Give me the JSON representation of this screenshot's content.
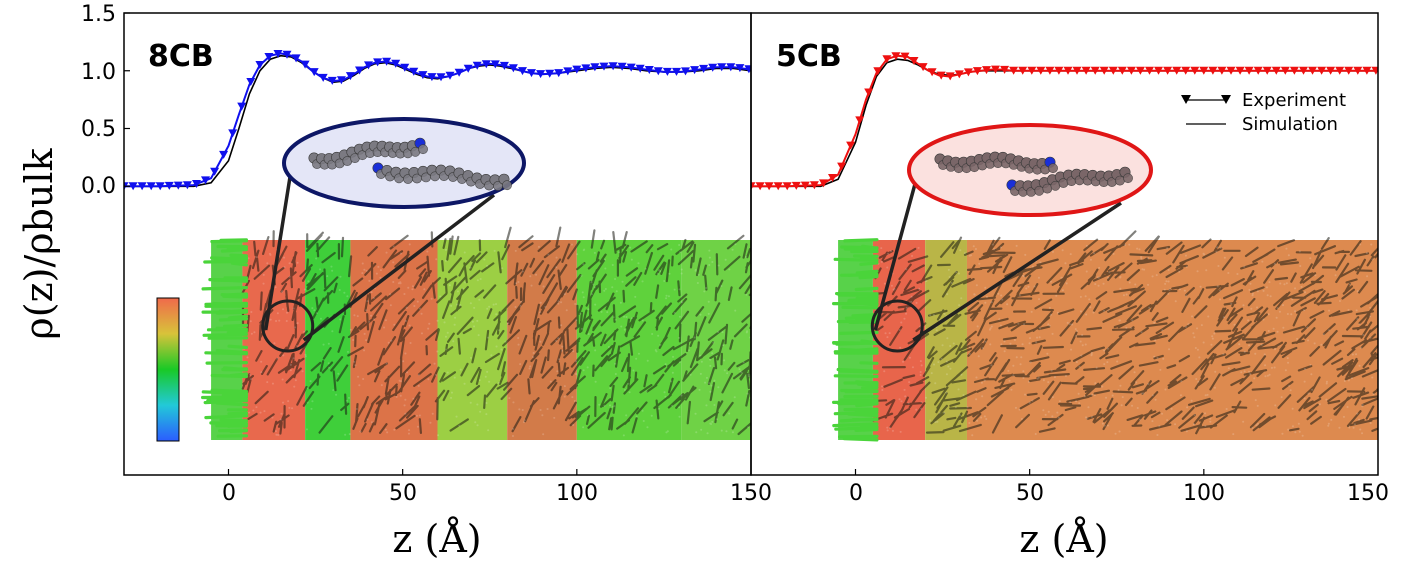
{
  "chart_data": [
    {
      "type": "line",
      "panel_label": "8CB",
      "xlabel": "z (Å)",
      "ylabel": "ρ(z)/ρbulk",
      "xlim": [
        -30,
        150
      ],
      "ylim": [
        -2.5,
        1.5
      ],
      "x_ticks": [
        "0",
        "50",
        "100",
        "150"
      ],
      "y_ticks": [
        "0.0",
        "0.5",
        "1.0",
        "1.5"
      ],
      "grid": false,
      "colors": {
        "experiment": "#1010ee",
        "simulation": "#000000",
        "ellipse_fill": "#e4e6f7",
        "ellipse_edge": "#0d1766",
        "molecule_atom": "#7b7a82",
        "molecule_end": "#1a2fd8"
      },
      "colorbar": {
        "stops": [
          "#2b5cff",
          "#22c9d8",
          "#19c926",
          "#d8c33a",
          "#f06a4b"
        ]
      },
      "series": [
        {
          "name": "Experiment",
          "marker": "triangle-down",
          "x": [
            -30,
            -20,
            -10,
            -5,
            0,
            3,
            6,
            9,
            12,
            15,
            18,
            21,
            24,
            27,
            30,
            33,
            36,
            39,
            42,
            45,
            48,
            51,
            54,
            57,
            60,
            63,
            66,
            69,
            72,
            75,
            78,
            81,
            84,
            87,
            90,
            95,
            100,
            105,
            110,
            115,
            120,
            125,
            130,
            135,
            140,
            145,
            150
          ],
          "y": [
            0,
            0,
            0.01,
            0.07,
            0.35,
            0.62,
            0.88,
            1.05,
            1.13,
            1.15,
            1.13,
            1.08,
            1.0,
            0.94,
            0.91,
            0.92,
            0.97,
            1.03,
            1.07,
            1.08,
            1.06,
            1.02,
            0.98,
            0.95,
            0.94,
            0.95,
            0.98,
            1.02,
            1.05,
            1.06,
            1.05,
            1.03,
            1.0,
            0.98,
            0.97,
            0.98,
            1.01,
            1.03,
            1.04,
            1.03,
            1.01,
            0.99,
            0.99,
            1.01,
            1.03,
            1.03,
            1.01
          ]
        },
        {
          "name": "Simulation",
          "x": [
            -30,
            -20,
            -10,
            -5,
            0,
            3,
            6,
            9,
            12,
            15,
            18,
            21,
            24,
            27,
            30,
            33,
            36,
            39,
            42,
            45,
            48,
            51,
            54,
            57,
            60,
            63,
            66,
            69,
            72,
            75,
            78,
            81,
            84,
            87,
            90,
            95,
            100,
            105,
            110,
            115,
            120,
            125,
            130,
            135,
            140,
            145,
            150
          ],
          "y": [
            0,
            0,
            0,
            0.03,
            0.22,
            0.5,
            0.8,
            1.0,
            1.1,
            1.13,
            1.12,
            1.07,
            1.0,
            0.94,
            0.9,
            0.91,
            0.96,
            1.02,
            1.06,
            1.07,
            1.05,
            1.01,
            0.97,
            0.94,
            0.93,
            0.95,
            0.98,
            1.02,
            1.04,
            1.05,
            1.04,
            1.02,
            1.0,
            0.98,
            0.97,
            0.98,
            1.0,
            1.02,
            1.03,
            1.02,
            1.0,
            0.99,
            0.99,
            1.0,
            1.02,
            1.02,
            1.0
          ]
        }
      ],
      "slab": {
        "z_start": -5,
        "z_end": 150,
        "bands": [
          {
            "from": -5,
            "to": 4,
            "color": "#58d24a"
          },
          {
            "from": 4,
            "to": 22,
            "color": "#e8694d"
          },
          {
            "from": 22,
            "to": 35,
            "color": "#3fcf3a"
          },
          {
            "from": 35,
            "to": 60,
            "color": "#dc7348"
          },
          {
            "from": 60,
            "to": 80,
            "color": "#9ccf44"
          },
          {
            "from": 80,
            "to": 100,
            "color": "#d27b49"
          },
          {
            "from": 100,
            "to": 130,
            "color": "#5fd23c"
          },
          {
            "from": 130,
            "to": 150,
            "color": "#6fd246"
          }
        ]
      },
      "zoom_circle_z": 17
    },
    {
      "type": "line",
      "panel_label": "5CB",
      "xlabel": "z (Å)",
      "xlim": [
        -30,
        150
      ],
      "ylim": [
        -2.5,
        1.5
      ],
      "x_ticks": [
        "150",
        "0",
        "50",
        "100",
        "150"
      ],
      "grid": false,
      "legend": {
        "placement": "right",
        "entries": [
          "Experiment",
          "Simulation"
        ]
      },
      "colors": {
        "experiment": "#ee1010",
        "simulation": "#000000",
        "ellipse_fill": "#fbe1df",
        "ellipse_edge": "#e01616",
        "molecule_atom": "#7a6668",
        "molecule_end": "#1a2fd8"
      },
      "series": [
        {
          "name": "Experiment",
          "marker": "triangle-down",
          "x": [
            -30,
            -20,
            -10,
            -5,
            0,
            3,
            6,
            9,
            12,
            15,
            18,
            21,
            24,
            27,
            30,
            33,
            36,
            39,
            42,
            45,
            48,
            51,
            54,
            57,
            60,
            65,
            70,
            75,
            80,
            85,
            90,
            95,
            100,
            105,
            110,
            115,
            120,
            125,
            130,
            135,
            140,
            145,
            150
          ],
          "y": [
            0,
            0,
            0.01,
            0.1,
            0.45,
            0.75,
            0.98,
            1.1,
            1.13,
            1.12,
            1.06,
            1.0,
            0.96,
            0.95,
            0.97,
            0.99,
            1.0,
            1.01,
            1.01,
            1.0,
            1.0,
            1.0,
            1.0,
            1.0,
            1.0,
            1.0,
            1.0,
            1.0,
            1.0,
            1.0,
            1.0,
            1.0,
            1.0,
            1.0,
            1.0,
            1.0,
            1.0,
            1.0,
            1.0,
            1.0,
            1.0,
            1.0,
            1.0
          ]
        },
        {
          "name": "Simulation",
          "x": [
            -30,
            -20,
            -10,
            -5,
            0,
            3,
            6,
            9,
            12,
            15,
            18,
            21,
            24,
            27,
            30,
            33,
            36,
            39,
            42,
            45,
            48,
            51,
            54,
            57,
            60,
            65,
            70,
            75,
            80,
            85,
            90,
            95,
            100,
            105,
            110,
            115,
            120,
            125,
            130,
            135,
            140,
            145,
            150
          ],
          "y": [
            0,
            0,
            0,
            0.06,
            0.38,
            0.7,
            0.95,
            1.07,
            1.1,
            1.09,
            1.05,
            1.0,
            0.97,
            0.96,
            0.97,
            0.99,
            1.0,
            1.0,
            1.0,
            1.0,
            1.0,
            1.0,
            1.0,
            1.0,
            1.0,
            1.0,
            1.0,
            1.0,
            1.0,
            1.0,
            1.0,
            1.0,
            1.0,
            1.0,
            1.0,
            1.0,
            1.0,
            1.0,
            1.0,
            1.0,
            1.0,
            1.0,
            1.0
          ]
        }
      ],
      "slab": {
        "z_start": -5,
        "z_end": 150,
        "bands": [
          {
            "from": -5,
            "to": 5,
            "color": "#58d24a"
          },
          {
            "from": 5,
            "to": 20,
            "color": "#e8654b"
          },
          {
            "from": 20,
            "to": 32,
            "color": "#b9b547"
          },
          {
            "from": 32,
            "to": 150,
            "color": "#dd8a4f"
          }
        ]
      },
      "zoom_circle_z": 12
    }
  ]
}
